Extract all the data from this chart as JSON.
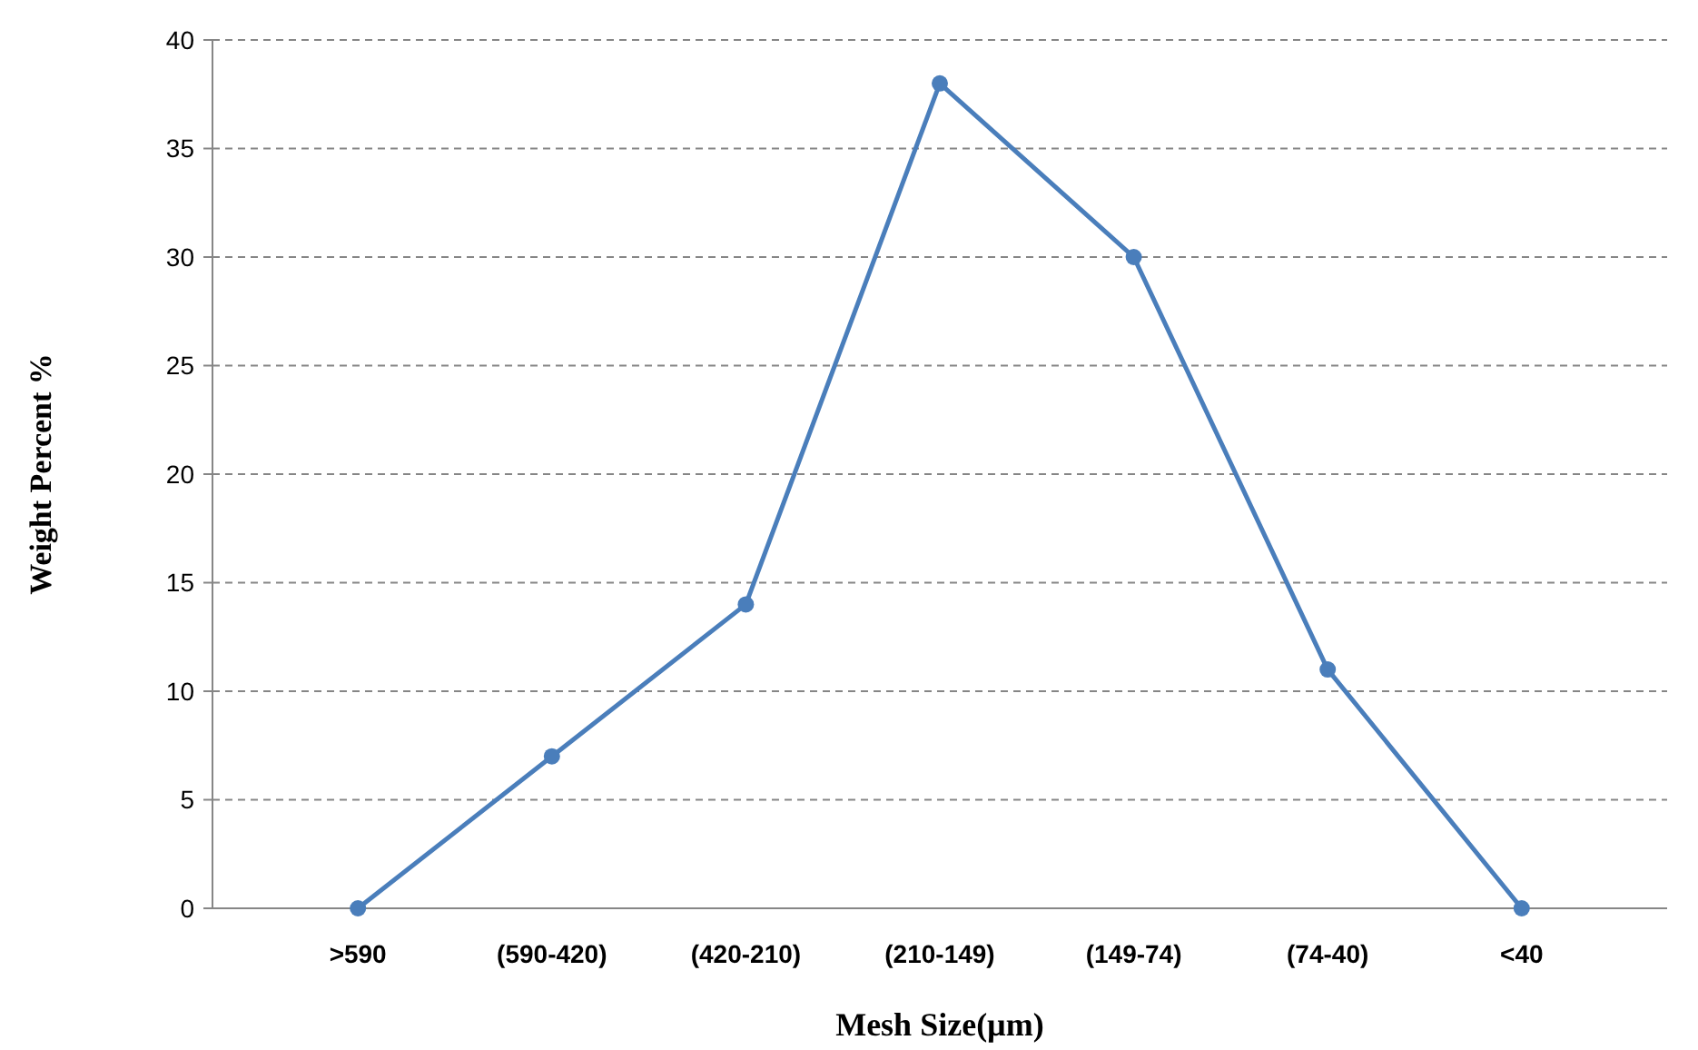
{
  "chart_data": {
    "type": "line",
    "xlabel": "Mesh Size(µm)",
    "ylabel": "Weight Percent %",
    "categories": [
      ">590",
      "(590-420)",
      "(420-210)",
      "(210-149)",
      "(149-74)",
      "(74-40)",
      "<40"
    ],
    "series": [
      {
        "color": "#4a7ebb",
        "values": [
          0,
          7,
          14,
          38,
          30,
          11,
          0
        ]
      }
    ],
    "ylim": [
      0,
      40
    ],
    "yticks": [
      0,
      5,
      10,
      15,
      20,
      25,
      30,
      35,
      40
    ],
    "grid": "y",
    "marker": "circle",
    "line_style": "solid"
  }
}
